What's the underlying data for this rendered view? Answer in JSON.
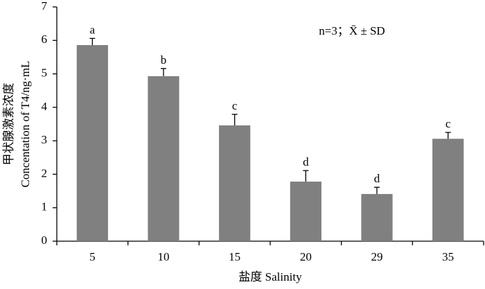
{
  "chart_data": {
    "type": "bar",
    "y_label_cn": "甲状腺激素浓度",
    "y_label": "Concentation of T4/ng·mL",
    "x_label": "盐度 Salinity",
    "annotation": "n=3；X̄ ± SD",
    "categories": [
      "5",
      "10",
      "15",
      "20",
      "29",
      "35"
    ],
    "values": [
      5.86,
      4.93,
      3.46,
      1.78,
      1.41,
      3.06
    ],
    "errors": [
      0.2,
      0.23,
      0.33,
      0.33,
      0.2,
      0.19
    ],
    "letters": [
      "a",
      "b",
      "c",
      "d",
      "d",
      "c"
    ],
    "color": "#808080",
    "ylim": [
      0,
      7
    ],
    "yticks": [
      0,
      1,
      2,
      3,
      4,
      5,
      6,
      7
    ],
    "grid": false
  }
}
